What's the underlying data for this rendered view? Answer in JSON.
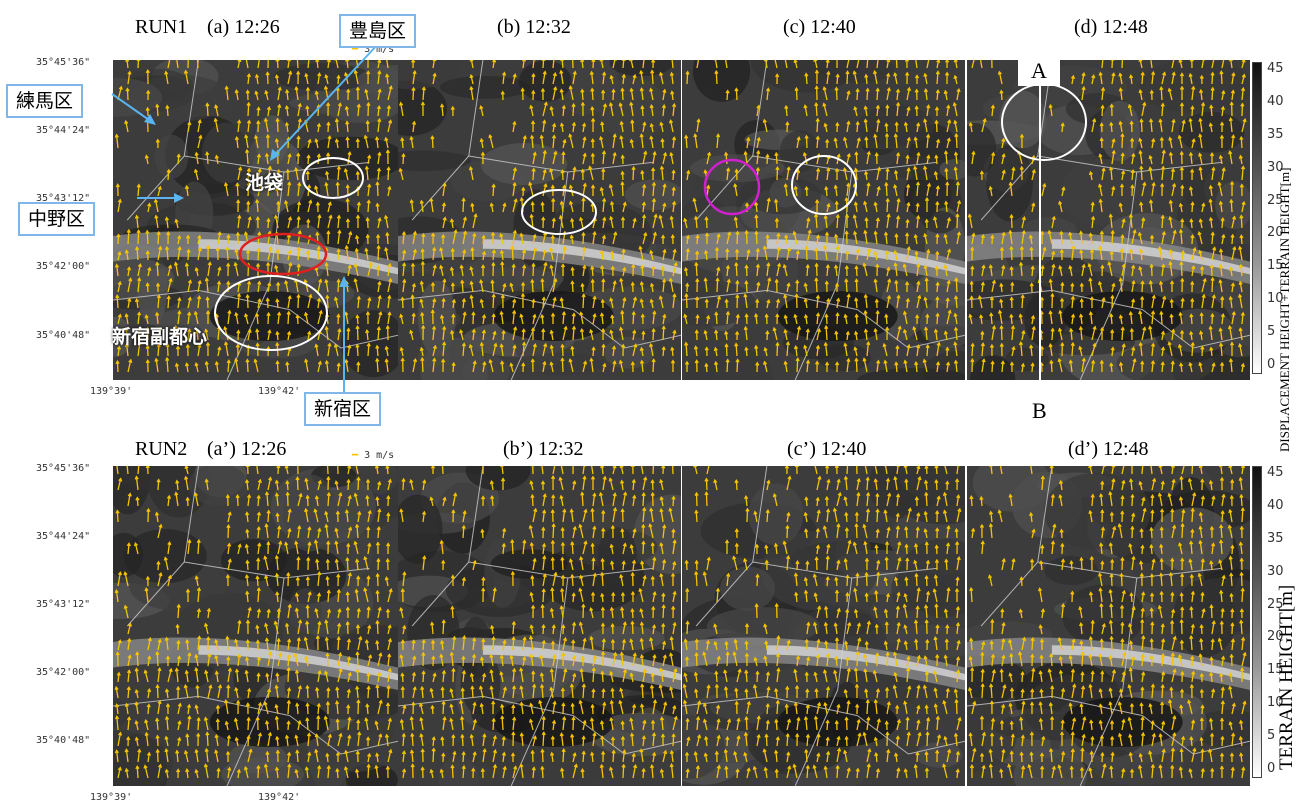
{
  "run1": {
    "label": "RUN1",
    "panels": [
      "(a) 12:26",
      "(b) 12:32",
      "(c) 12:40",
      "(d) 12:48"
    ],
    "scale": "3 m/s",
    "colorbar_title": "DISPLACEMENT HEIGHT+TERRAIN HEIGHT[m]"
  },
  "run2": {
    "label": "RUN2",
    "panels": [
      "(a’) 12:26",
      "(b’) 12:32",
      "(c’) 12:40",
      "(d’) 12:48"
    ],
    "scale": "3 m/s",
    "colorbar_title": "TERRAIN HEIGHT[m]"
  },
  "latitudes": [
    "35°45'36\"",
    "35°44'24\"",
    "35°43'12\"",
    "35°42'00\"",
    "35°40'48\""
  ],
  "longitudes": [
    "139°39'",
    "139°42'"
  ],
  "colorbar_ticks": [
    "45",
    "40",
    "35",
    "30",
    "25",
    "20",
    "15",
    "10",
    "5",
    "0"
  ],
  "annotations": {
    "nerima": "練馬区",
    "toshima": "豊島区",
    "nakano": "中野区",
    "shinjuku": "新宿区",
    "ikebukuro": "池袋",
    "shinjuku_center": "新宿副都心",
    "section_a": "A",
    "section_b": "B"
  },
  "colors": {
    "arrow": "#f5c400",
    "circle_white": "#ffffff",
    "circle_red": "#e02020",
    "circle_magenta": "#d020d0",
    "callout_border": "#7fb8e8"
  }
}
